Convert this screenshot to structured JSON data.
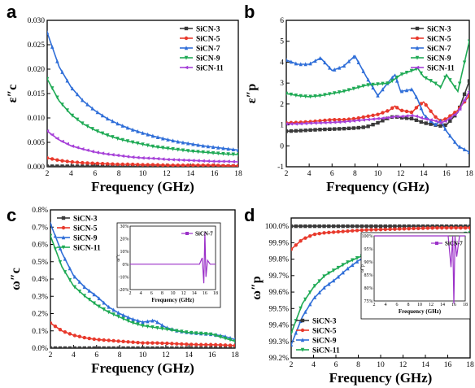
{
  "chart_data": [
    {
      "type": "line",
      "panel": "a",
      "xlabel": "Frequency (GHz)",
      "ylabel": "ε″c",
      "xlim": [
        2,
        18
      ],
      "ylim": [
        0,
        0.03
      ],
      "xticks": [
        2,
        4,
        6,
        8,
        10,
        12,
        14,
        16,
        18
      ],
      "yticks": [
        0.0,
        0.005,
        0.01,
        0.015,
        0.02,
        0.025,
        0.03
      ],
      "ytick_labels": [
        "0.000",
        "0.005",
        "0.010",
        "0.015",
        "0.020",
        "0.025",
        "0.030"
      ],
      "legend_position": "top-right",
      "x": [
        2,
        3,
        4,
        5,
        6,
        7,
        8,
        9,
        10,
        11,
        12,
        13,
        14,
        15,
        16,
        17,
        18
      ],
      "series": [
        {
          "name": "SiCN-3",
          "color": "#3a3a3a",
          "values": [
            0.0001,
            0.0001,
            0.0001,
            0.0001,
            0.0001,
            0.0001,
            0.0001,
            0.0001,
            0.0001,
            0.0001,
            0.0001,
            0.0001,
            0.0001,
            0.0001,
            0.0001,
            0.0001,
            0.0001
          ]
        },
        {
          "name": "SiCN-5",
          "color": "#e8392c",
          "values": [
            0.0018,
            0.0013,
            0.001,
            0.0008,
            0.0007,
            0.0006,
            0.0005,
            0.0005,
            0.0004,
            0.0004,
            0.0003,
            0.0003,
            0.0003,
            0.0003,
            0.0003,
            0.0002,
            0.0002
          ]
        },
        {
          "name": "SiCN-7",
          "color": "#2f6ed8",
          "values": [
            0.0275,
            0.0205,
            0.0163,
            0.0135,
            0.0115,
            0.0099,
            0.0087,
            0.0077,
            0.0069,
            0.0062,
            0.0056,
            0.0051,
            0.0047,
            0.0043,
            0.004,
            0.0037,
            0.0034
          ]
        },
        {
          "name": "SiCN-9",
          "color": "#1faa55",
          "values": [
            0.018,
            0.0135,
            0.0107,
            0.0088,
            0.0075,
            0.0065,
            0.0057,
            0.0051,
            0.0046,
            0.0041,
            0.0038,
            0.0035,
            0.0032,
            0.003,
            0.0028,
            0.0026,
            0.0025
          ]
        },
        {
          "name": "SiCN-11",
          "color": "#a640d8",
          "values": [
            0.0073,
            0.0055,
            0.0043,
            0.0036,
            0.003,
            0.0026,
            0.0023,
            0.002,
            0.0018,
            0.0017,
            0.0015,
            0.0014,
            0.0013,
            0.0012,
            0.0011,
            0.0011,
            0.001
          ]
        }
      ]
    },
    {
      "type": "line",
      "panel": "b",
      "xlabel": "Frequency (GHz)",
      "ylabel": "ε″p",
      "xlim": [
        2,
        18
      ],
      "ylim": [
        -1,
        6
      ],
      "xticks": [
        2,
        4,
        6,
        8,
        10,
        12,
        14,
        16,
        18
      ],
      "yticks": [
        -1,
        0,
        1,
        2,
        3,
        4,
        5,
        6
      ],
      "ytick_labels": [
        "-1",
        "0",
        "1",
        "2",
        "3",
        "4",
        "5",
        "6"
      ],
      "legend_position": "top-right",
      "x": [
        2,
        3,
        4,
        5,
        6,
        7,
        8,
        9,
        10,
        11,
        11.5,
        12,
        13,
        13.5,
        14,
        15,
        15.5,
        16,
        17,
        18
      ],
      "series": [
        {
          "name": "SiCN-3",
          "color": "#3a3a3a",
          "values": [
            0.7,
            0.72,
            0.75,
            0.78,
            0.8,
            0.82,
            0.85,
            0.9,
            1.1,
            1.35,
            1.4,
            1.35,
            1.3,
            1.2,
            1.1,
            1.0,
            0.95,
            1.0,
            1.6,
            3.1
          ]
        },
        {
          "name": "SiCN-5",
          "color": "#e8392c",
          "values": [
            1.1,
            1.12,
            1.15,
            1.2,
            1.25,
            1.25,
            1.3,
            1.4,
            1.5,
            1.7,
            1.9,
            1.7,
            1.6,
            1.9,
            2.1,
            1.4,
            1.2,
            1.3,
            1.7,
            2.4
          ]
        },
        {
          "name": "SiCN-7",
          "color": "#2f6ed8",
          "values": [
            4.1,
            3.9,
            3.9,
            4.2,
            3.6,
            3.8,
            4.3,
            3.3,
            2.4,
            3.1,
            3.4,
            2.6,
            2.7,
            2.2,
            1.5,
            1.0,
            1.2,
            0.7,
            0.0,
            -0.3
          ]
        },
        {
          "name": "SiCN-9",
          "color": "#1faa55",
          "values": [
            2.5,
            2.4,
            2.35,
            2.4,
            2.5,
            2.6,
            2.75,
            2.9,
            2.95,
            3.0,
            3.2,
            3.4,
            3.6,
            3.7,
            3.3,
            3.0,
            2.8,
            3.4,
            2.6,
            5.0
          ]
        },
        {
          "name": "SiCN-11",
          "color": "#a640d8",
          "values": [
            1.05,
            1.05,
            1.08,
            1.1,
            1.12,
            1.15,
            1.2,
            1.25,
            1.3,
            1.35,
            1.4,
            1.4,
            1.45,
            1.4,
            1.3,
            1.2,
            1.1,
            1.2,
            1.6,
            2.6
          ]
        }
      ]
    },
    {
      "type": "line",
      "panel": "c",
      "xlabel": "Frequency (GHz)",
      "ylabel": "ω″c",
      "xlim": [
        2,
        18
      ],
      "ylim": [
        0,
        0.8
      ],
      "xticks": [
        2,
        4,
        6,
        8,
        10,
        12,
        14,
        16,
        18
      ],
      "yticks": [
        0.0,
        0.1,
        0.2,
        0.3,
        0.4,
        0.5,
        0.6,
        0.7,
        0.8
      ],
      "ytick_labels": [
        "0.0%",
        "0.1%",
        "0.2%",
        "0.3%",
        "0.4%",
        "0.5%",
        "0.6%",
        "0.7%",
        "0.8%"
      ],
      "legend_position": "top-left",
      "x": [
        2,
        3,
        4,
        5,
        6,
        7,
        8,
        9,
        10,
        11,
        12,
        13,
        14,
        15,
        16,
        17,
        18
      ],
      "series": [
        {
          "name": "SiCN-3",
          "color": "#3a3a3a",
          "values": [
            0.0,
            0.0,
            0.0,
            0.0,
            0.0,
            0.0,
            0.0,
            0.0,
            0.0,
            0.0,
            0.0,
            0.0,
            0.0,
            0.0,
            0.0,
            0.0,
            0.0
          ]
        },
        {
          "name": "SiCN-5",
          "color": "#e8392c",
          "values": [
            0.145,
            0.1,
            0.075,
            0.06,
            0.05,
            0.045,
            0.04,
            0.035,
            0.03,
            0.03,
            0.028,
            0.025,
            0.022,
            0.02,
            0.02,
            0.018,
            0.015
          ]
        },
        {
          "name": "SiCN-9",
          "color": "#2f6ed8",
          "values": [
            0.72,
            0.55,
            0.42,
            0.35,
            0.3,
            0.24,
            0.2,
            0.17,
            0.15,
            0.16,
            0.12,
            0.1,
            0.09,
            0.085,
            0.08,
            0.07,
            0.05
          ]
        },
        {
          "name": "SiCN-11",
          "color": "#1faa55",
          "values": [
            0.65,
            0.47,
            0.36,
            0.3,
            0.25,
            0.21,
            0.18,
            0.15,
            0.13,
            0.12,
            0.11,
            0.1,
            0.09,
            0.085,
            0.08,
            0.06,
            0.04
          ]
        }
      ],
      "inset": {
        "xlabel": "Frequency (GHz)",
        "ylabel": "ω″c",
        "xticks": [
          2,
          4,
          6,
          8,
          10,
          12,
          14,
          16,
          18
        ],
        "yticks": [
          -20,
          -10,
          0,
          10,
          20,
          30
        ],
        "ytick_labels": [
          "-20%",
          "-10%",
          "0%",
          "10%",
          "20%",
          "30%"
        ],
        "series_name": "SiCN-7",
        "color": "#9b30c8",
        "x": [
          2,
          4,
          6,
          8,
          10,
          12,
          14,
          15,
          15.5,
          15.8,
          16,
          16.2,
          16.5,
          17,
          18
        ],
        "values": [
          0,
          0,
          0,
          0,
          0,
          0,
          0,
          0,
          5,
          -15,
          25,
          -10,
          3,
          0,
          0
        ]
      }
    },
    {
      "type": "line",
      "panel": "d",
      "xlabel": "Frequency (GHz)",
      "ylabel": "ω″p",
      "xlim": [
        2,
        18
      ],
      "ylim": [
        99.2,
        100.05
      ],
      "xticks": [
        2,
        4,
        6,
        8,
        10,
        12,
        14,
        16,
        18
      ],
      "yticks": [
        99.2,
        99.3,
        99.4,
        99.5,
        99.6,
        99.7,
        99.8,
        99.9,
        100.0
      ],
      "ytick_labels": [
        "99.2%",
        "99.3%",
        "99.4%",
        "99.5%",
        "99.6%",
        "99.7%",
        "99.8%",
        "99.9%",
        "100.0%"
      ],
      "legend_position": "bottom-left",
      "x": [
        2,
        3,
        4,
        5,
        6,
        7,
        8,
        9,
        10,
        11,
        12,
        13,
        14,
        15,
        16,
        17,
        18
      ],
      "series": [
        {
          "name": "SiCN-3",
          "color": "#3a3a3a",
          "values": [
            100.0,
            100.0,
            100.0,
            100.0,
            100.0,
            100.0,
            100.0,
            100.0,
            100.0,
            100.0,
            100.0,
            100.0,
            100.0,
            100.0,
            100.0,
            100.0,
            100.0
          ]
        },
        {
          "name": "SiCN-5",
          "color": "#e8392c",
          "values": [
            99.86,
            99.92,
            99.95,
            99.96,
            99.965,
            99.97,
            99.975,
            99.978,
            99.98,
            99.982,
            99.984,
            99.986,
            99.988,
            99.99,
            99.99,
            99.99,
            99.99
          ]
        },
        {
          "name": "SiCN-9",
          "color": "#2f6ed8",
          "values": [
            99.28,
            99.45,
            99.56,
            99.63,
            99.68,
            99.74,
            99.79,
            99.83,
            99.85,
            99.86,
            99.88,
            99.9,
            99.92,
            99.93,
            99.94,
            99.95,
            99.96
          ]
        },
        {
          "name": "SiCN-11",
          "color": "#1faa55",
          "values": [
            99.35,
            99.53,
            99.63,
            99.7,
            99.74,
            99.78,
            99.81,
            99.84,
            99.86,
            99.88,
            99.9,
            99.91,
            99.92,
            99.93,
            99.94,
            99.95,
            99.96
          ]
        }
      ],
      "inset": {
        "xlabel": "Frequency (GHz)",
        "ylabel": "ω″p",
        "xticks": [
          2,
          4,
          6,
          8,
          10,
          12,
          14,
          16,
          18
        ],
        "yticks": [
          75,
          80,
          85,
          90,
          95,
          100
        ],
        "ytick_labels": [
          "75%",
          "80%",
          "85%",
          "90%",
          "95%",
          "100%"
        ],
        "series_name": "SiCN-7",
        "color": "#9b30c8",
        "x": [
          2,
          4,
          6,
          8,
          10,
          12,
          14,
          15,
          15.5,
          15.8,
          16,
          16.2,
          16.5,
          17,
          18
        ],
        "values": [
          100,
          100,
          100,
          100,
          100,
          100,
          100,
          100,
          88,
          100,
          74,
          100,
          92,
          100,
          100
        ]
      }
    }
  ]
}
